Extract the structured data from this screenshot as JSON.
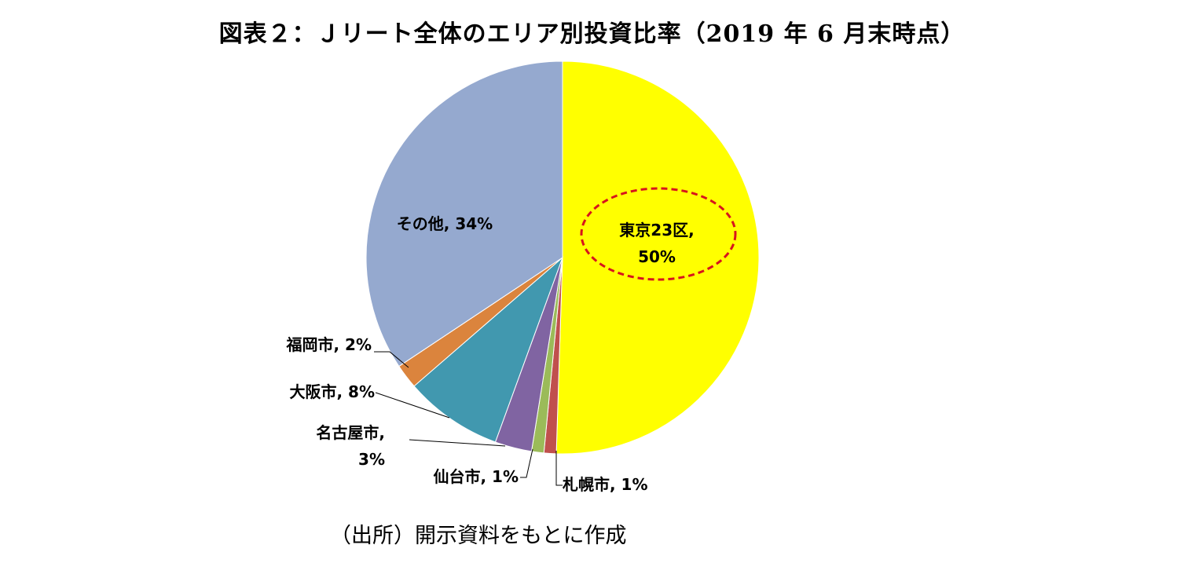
{
  "title": "図表２：Ｊリート全体のエリア別投資比率（2019 年 6 月末時点）",
  "source_note": "（出所）開示資料をもとに作成",
  "chart_data": {
    "type": "pie",
    "start": "12 o'clock",
    "direction": "clockwise",
    "slices": [
      {
        "name": "東京23区",
        "value": 50,
        "label_lines": [
          "東京23区,",
          "50%"
        ],
        "color": "#ffff00",
        "highlight": "red dashed ellipse"
      },
      {
        "name": "札幌市",
        "value": 1,
        "label_lines": [
          "札幌市, 1%"
        ],
        "color": "#c0504d"
      },
      {
        "name": "仙台市",
        "value": 1,
        "label_lines": [
          "仙台市, 1%"
        ],
        "color": "#9bbb59"
      },
      {
        "name": "名古屋市",
        "value": 3,
        "label_lines": [
          "名古屋市,",
          "3%"
        ],
        "color": "#8064a2"
      },
      {
        "name": "大阪市",
        "value": 8,
        "label_lines": [
          "大阪市, 8%"
        ],
        "color": "#4198af"
      },
      {
        "name": "福岡市",
        "value": 2,
        "label_lines": [
          "福岡市, 2%"
        ],
        "color": "#db843d"
      },
      {
        "name": "その他",
        "value": 34,
        "label_lines": [
          "その他, 34%"
        ],
        "color": "#95a9cf"
      }
    ],
    "highlight_color": "#d7141c",
    "leader_line_color": "#000000"
  }
}
